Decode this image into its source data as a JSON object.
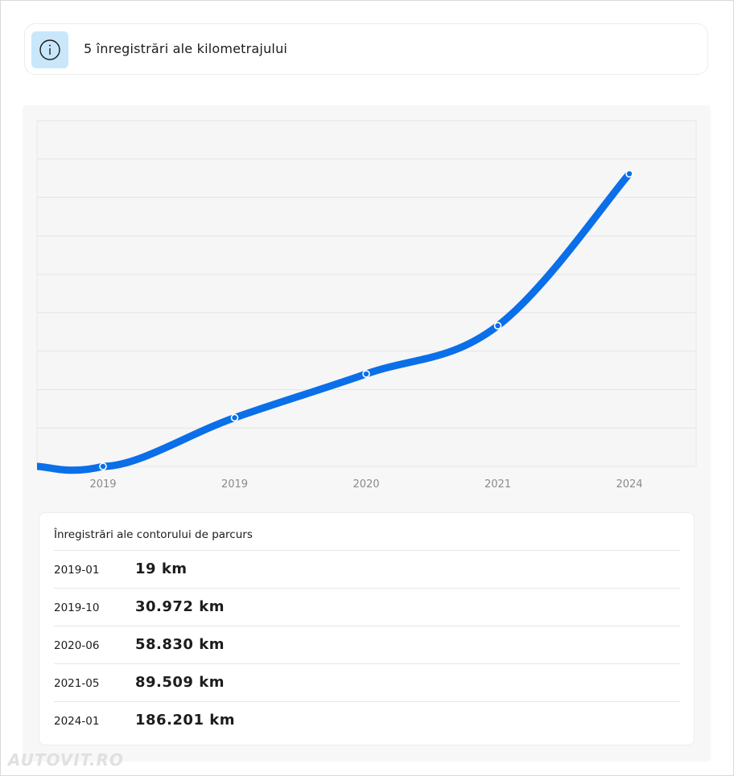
{
  "info": {
    "icon": "info-icon",
    "title": "5 înregistrări ale kilometrajului"
  },
  "chart_data": {
    "type": "line",
    "categories": [
      "2019",
      "2019",
      "2020",
      "2021",
      "2024"
    ],
    "values": [
      19,
      30972,
      58830,
      89509,
      186201
    ],
    "title": "",
    "xlabel": "",
    "ylabel": "",
    "ylim": [
      0,
      220000
    ],
    "grid": true,
    "line_color": "#0a6fe8"
  },
  "records": {
    "title": "Înregistrări ale contorului de parcurs",
    "rows": [
      {
        "date": "2019-01",
        "km": "19 km"
      },
      {
        "date": "2019-10",
        "km": "30.972 km"
      },
      {
        "date": "2020-06",
        "km": "58.830 km"
      },
      {
        "date": "2021-05",
        "km": "89.509 km"
      },
      {
        "date": "2024-01",
        "km": "186.201 km"
      }
    ]
  },
  "watermark": "AUTOVIT.RO"
}
